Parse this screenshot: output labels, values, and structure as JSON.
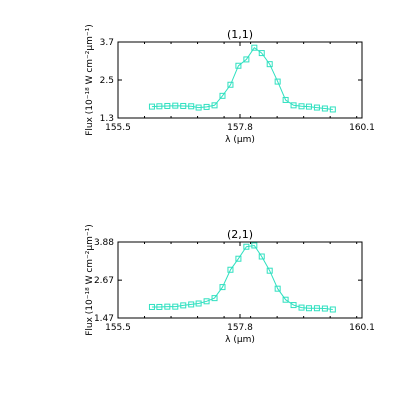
{
  "chart_data": [
    {
      "type": "line",
      "title": "(1,1)",
      "xlabel": "λ (μm)",
      "ylabel": "Flux (10⁻¹⁸ W cm⁻²μm⁻¹)",
      "xlim": [
        155.5,
        160.1
      ],
      "ylim": [
        1.3,
        3.7
      ],
      "xticks": [
        "155.5",
        "157.8",
        "160.1"
      ],
      "yticks": [
        "1.3",
        "2.5",
        "3.7"
      ],
      "marker": "square",
      "color": "#2fe0c0",
      "series": [
        {
          "x": [
            156.14,
            156.28,
            156.43,
            156.58,
            156.73,
            156.88,
            157.02,
            157.17,
            157.32,
            157.47,
            157.62,
            157.77,
            157.92,
            158.07,
            158.21,
            158.36,
            158.51,
            158.66,
            158.81,
            158.96,
            159.1,
            159.25,
            159.4,
            159.55
          ],
          "y": [
            1.66,
            1.67,
            1.68,
            1.69,
            1.68,
            1.67,
            1.63,
            1.65,
            1.7,
            2.0,
            2.35,
            2.95,
            3.15,
            3.52,
            3.35,
            3.0,
            2.45,
            1.87,
            1.7,
            1.67,
            1.66,
            1.63,
            1.6,
            1.57
          ]
        }
      ]
    },
    {
      "type": "line",
      "title": "(2,1)",
      "xlabel": "λ (μm)",
      "ylabel": "Flux (10⁻¹⁸ W cm⁻²μm⁻¹)",
      "xlim": [
        155.5,
        160.1
      ],
      "ylim": [
        1.47,
        3.88
      ],
      "xticks": [
        "155.5",
        "157.8",
        "160.1"
      ],
      "yticks": [
        "1.47",
        "2.67",
        "3.88"
      ],
      "marker": "square",
      "color": "#2fe0c0",
      "series": [
        {
          "x": [
            156.14,
            156.28,
            156.43,
            156.58,
            156.73,
            156.88,
            157.02,
            157.17,
            157.32,
            157.47,
            157.62,
            157.77,
            157.92,
            158.07,
            158.21,
            158.36,
            158.51,
            158.66,
            158.81,
            158.96,
            159.1,
            159.25,
            159.4,
            159.55
          ],
          "y": [
            1.82,
            1.82,
            1.83,
            1.83,
            1.87,
            1.9,
            1.93,
            2.0,
            2.1,
            2.45,
            3.0,
            3.35,
            3.73,
            3.77,
            3.42,
            2.97,
            2.4,
            2.05,
            1.88,
            1.8,
            1.78,
            1.78,
            1.77,
            1.74
          ]
        }
      ]
    }
  ]
}
